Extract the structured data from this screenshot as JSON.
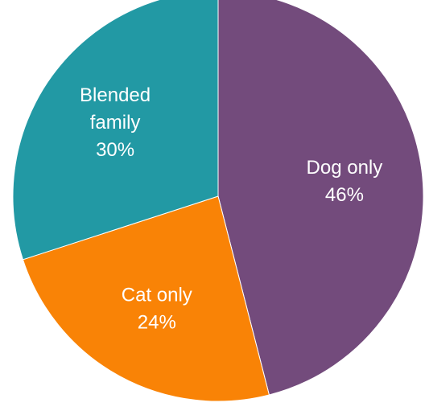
{
  "chart_data": {
    "type": "pie",
    "title": "",
    "start_angle_deg": 0,
    "direction": "clockwise",
    "slices": [
      {
        "label_lines": [
          "Dog only"
        ],
        "percent_label": "46%",
        "value": 46,
        "color": "#734b7c"
      },
      {
        "label_lines": [
          "Cat only"
        ],
        "percent_label": "24%",
        "value": 24,
        "color": "#f98306"
      },
      {
        "label_lines": [
          "Blended",
          "family"
        ],
        "percent_label": "30%",
        "value": 30,
        "color": "#2299a4"
      }
    ]
  }
}
